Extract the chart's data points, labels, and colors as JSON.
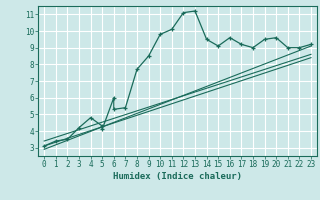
{
  "xlabel": "Humidex (Indice chaleur)",
  "bg_color": "#cde8e8",
  "grid_color": "#ffffff",
  "line_color": "#1a6b5a",
  "xlim": [
    -0.5,
    23.5
  ],
  "ylim": [
    2.5,
    11.5
  ],
  "xticks": [
    0,
    1,
    2,
    3,
    4,
    5,
    6,
    7,
    8,
    9,
    10,
    11,
    12,
    13,
    14,
    15,
    16,
    17,
    18,
    19,
    20,
    21,
    22,
    23
  ],
  "yticks": [
    3,
    4,
    5,
    6,
    7,
    8,
    9,
    10,
    11
  ],
  "main_x": [
    0,
    1,
    2,
    3,
    4,
    5,
    5,
    6,
    6,
    7,
    8,
    9,
    10,
    11,
    12,
    13,
    14,
    15,
    16,
    17,
    18,
    19,
    20,
    21,
    22,
    23
  ],
  "main_y": [
    3.1,
    3.4,
    3.5,
    4.2,
    4.8,
    4.3,
    4.1,
    6.0,
    5.3,
    5.4,
    7.7,
    8.5,
    9.8,
    10.1,
    11.1,
    11.2,
    9.5,
    9.1,
    9.6,
    9.2,
    9.0,
    9.5,
    9.6,
    9.0,
    9.0,
    9.2
  ],
  "trend1_x": [
    0,
    23
  ],
  "trend1_y": [
    3.4,
    8.6
  ],
  "trend2_x": [
    0,
    23
  ],
  "trend2_y": [
    3.1,
    8.4
  ],
  "trend3_x": [
    0,
    23
  ],
  "trend3_y": [
    2.9,
    9.1
  ]
}
